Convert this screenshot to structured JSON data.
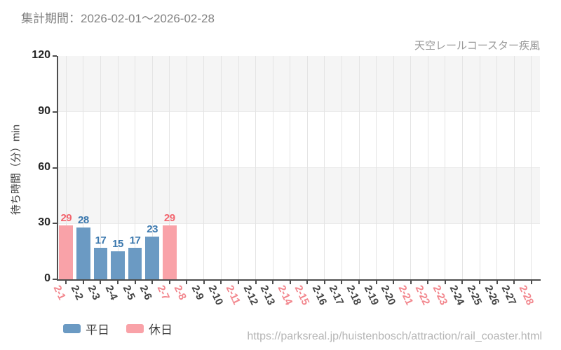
{
  "header": {
    "title": "集計期間：2026-02-01～2026-02-28"
  },
  "footer": {
    "url": "https://parksreal.jp/huistenbosch/attraction/rail_coaster.html"
  },
  "legend": {
    "items": [
      {
        "label": "平日",
        "type": "weekday"
      },
      {
        "label": "休日",
        "type": "holiday"
      }
    ]
  },
  "chart_data": {
    "type": "bar",
    "title": "天空レールコースター疾風",
    "ylabel": "待ち時間（分）min",
    "ylim": [
      0,
      120
    ],
    "yticks": [
      0,
      30,
      60,
      90,
      120
    ],
    "categories": [
      "2-1",
      "2-2",
      "2-3",
      "2-4",
      "2-5",
      "2-6",
      "2-7",
      "2-8",
      "2-9",
      "2-10",
      "2-11",
      "2-12",
      "2-13",
      "2-14",
      "2-15",
      "2-16",
      "2-17",
      "2-18",
      "2-19",
      "2-20",
      "2-21",
      "2-22",
      "2-23",
      "2-24",
      "2-25",
      "2-26",
      "2-27",
      "2-28"
    ],
    "values": [
      29,
      28,
      17,
      15,
      17,
      23,
      29,
      null,
      null,
      null,
      null,
      null,
      null,
      null,
      null,
      null,
      null,
      null,
      null,
      null,
      null,
      null,
      null,
      null,
      null,
      null,
      null,
      null
    ],
    "holiday_indices": [
      0,
      6,
      7,
      10,
      13,
      14,
      20,
      21,
      22,
      27
    ],
    "grid": "banded",
    "legend_position": "bottom-left"
  },
  "colors": {
    "weekday_bar": "#6b9ac3",
    "holiday_bar": "#f9a2a8",
    "weekday_value_label": "#3b78ae",
    "holiday_value_label": "#f2656e",
    "weekday_tick_label": "#444444",
    "holiday_tick_label": "#f2868d",
    "band_gray": "#f5f5f5",
    "band_white": "#ffffff",
    "axis": "#4d4d4d",
    "muted_text": "#9a9a9a"
  }
}
